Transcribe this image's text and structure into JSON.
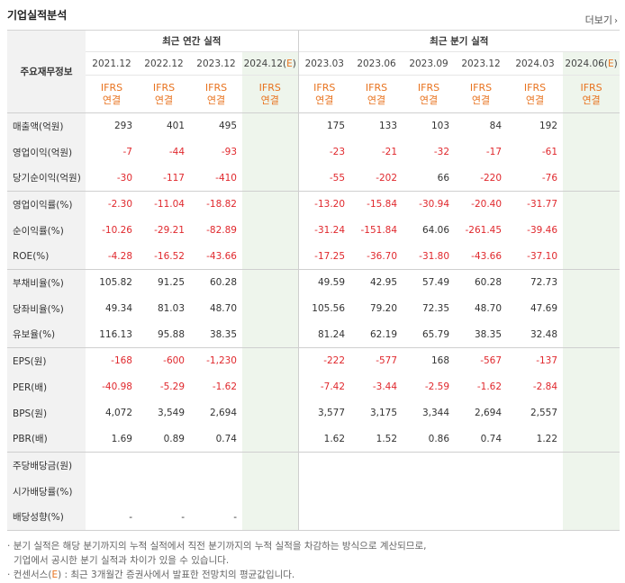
{
  "title": "기업실적분석",
  "more": {
    "label": "더보기",
    "icon": "chevron-right"
  },
  "header": {
    "label_col": "주요재무정보",
    "annual_group": "최근 연간 실적",
    "quarter_group": "최근 분기 실적",
    "annual_periods": [
      "2021.12",
      "2022.12",
      "2023.12",
      "2024.12(E)"
    ],
    "quarter_periods": [
      "2023.03",
      "2023.06",
      "2023.09",
      "2023.12",
      "2024.03",
      "2024.06(E)"
    ],
    "ifrs_top": "IFRS",
    "ifrs_bottom": "연결"
  },
  "rows": [
    {
      "label": "매출액(억원)",
      "annual": [
        "293",
        "401",
        "495",
        ""
      ],
      "quarter": [
        "175",
        "133",
        "103",
        "84",
        "192",
        ""
      ]
    },
    {
      "label": "영업이익(억원)",
      "annual": [
        "-7",
        "-44",
        "-93",
        ""
      ],
      "quarter": [
        "-23",
        "-21",
        "-32",
        "-17",
        "-61",
        ""
      ]
    },
    {
      "label": "당기순이익(억원)",
      "annual": [
        "-30",
        "-117",
        "-410",
        ""
      ],
      "quarter": [
        "-55",
        "-202",
        "66",
        "-220",
        "-76",
        ""
      ]
    },
    {
      "label": "영업이익률(%)",
      "annual": [
        "-2.30",
        "-11.04",
        "-18.82",
        ""
      ],
      "quarter": [
        "-13.20",
        "-15.84",
        "-30.94",
        "-20.40",
        "-31.77",
        ""
      ]
    },
    {
      "label": "순이익률(%)",
      "annual": [
        "-10.26",
        "-29.21",
        "-82.89",
        ""
      ],
      "quarter": [
        "-31.24",
        "-151.84",
        "64.06",
        "-261.45",
        "-39.46",
        ""
      ]
    },
    {
      "label": "ROE(%)",
      "annual": [
        "-4.28",
        "-16.52",
        "-43.66",
        ""
      ],
      "quarter": [
        "-17.25",
        "-36.70",
        "-31.80",
        "-43.66",
        "-37.10",
        ""
      ]
    },
    {
      "label": "부채비율(%)",
      "annual": [
        "105.82",
        "91.25",
        "60.28",
        ""
      ],
      "quarter": [
        "49.59",
        "42.95",
        "57.49",
        "60.28",
        "72.73",
        ""
      ]
    },
    {
      "label": "당좌비율(%)",
      "annual": [
        "49.34",
        "81.03",
        "48.70",
        ""
      ],
      "quarter": [
        "105.56",
        "79.20",
        "72.35",
        "48.70",
        "47.69",
        ""
      ]
    },
    {
      "label": "유보율(%)",
      "annual": [
        "116.13",
        "95.88",
        "38.35",
        ""
      ],
      "quarter": [
        "81.24",
        "62.19",
        "65.79",
        "38.35",
        "32.48",
        ""
      ]
    },
    {
      "label": "EPS(원)",
      "annual": [
        "-168",
        "-600",
        "-1,230",
        ""
      ],
      "quarter": [
        "-222",
        "-577",
        "168",
        "-567",
        "-137",
        ""
      ]
    },
    {
      "label": "PER(배)",
      "annual": [
        "-40.98",
        "-5.29",
        "-1.62",
        ""
      ],
      "quarter": [
        "-7.42",
        "-3.44",
        "-2.59",
        "-1.62",
        "-2.84",
        ""
      ]
    },
    {
      "label": "BPS(원)",
      "annual": [
        "4,072",
        "3,549",
        "2,694",
        ""
      ],
      "quarter": [
        "3,577",
        "3,175",
        "3,344",
        "2,694",
        "2,557",
        ""
      ]
    },
    {
      "label": "PBR(배)",
      "annual": [
        "1.69",
        "0.89",
        "0.74",
        ""
      ],
      "quarter": [
        "1.62",
        "1.52",
        "0.86",
        "0.74",
        "1.22",
        ""
      ]
    },
    {
      "label": "주당배당금(원)",
      "annual": [
        "",
        "",
        "",
        ""
      ],
      "quarter": [
        "",
        "",
        "",
        "",
        "",
        ""
      ]
    },
    {
      "label": "시가배당률(%)",
      "annual": [
        "",
        "",
        "",
        ""
      ],
      "quarter": [
        "",
        "",
        "",
        "",
        "",
        ""
      ]
    },
    {
      "label": "배당성향(%)",
      "annual": [
        "-",
        "-",
        "-",
        ""
      ],
      "quarter": [
        "",
        "",
        "",
        "",
        "",
        ""
      ]
    }
  ],
  "notes": {
    "line1": "분기 실적은 해당 분기까지의 누적 실적에서 직전 분기까지의 누적 실적을 차감하는 방식으로 계산되므로,",
    "line2": "기업에서 공시한 분기 실적과 차이가 있을 수 있습니다.",
    "line3_prefix": "컨센서스(",
    "line3_e": "E",
    "line3_suffix": ") : 최근 3개월간 증권사에서 발표한 전망치의 평균값입니다."
  },
  "colors": {
    "negative": "#e0282d",
    "ifrs": "#e8731f",
    "estimate_bg": "#eef5ec",
    "label_bg": "#f2f2f2"
  }
}
